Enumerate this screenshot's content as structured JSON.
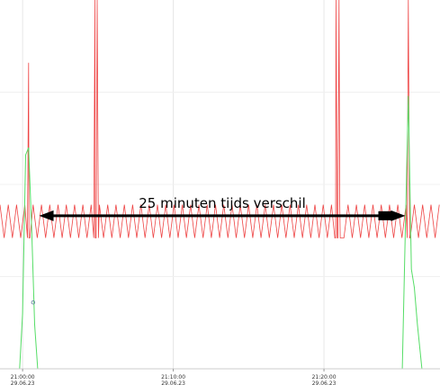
{
  "chart_data": {
    "type": "line",
    "xlabel": "",
    "ylabel": "",
    "x_unit": "minutes",
    "xlim": [
      -1.5,
      27.7
    ],
    "ylim": [
      0,
      100
    ],
    "grid": true,
    "x_ticks": [
      {
        "value": 0,
        "time": "21:00:00",
        "date": "29.06.23"
      },
      {
        "value": 10,
        "time": "21:10:00",
        "date": "29.06.23"
      },
      {
        "value": 20,
        "time": "21:20:00",
        "date": "29.06.23"
      }
    ],
    "series": [
      {
        "color": "#ee4444",
        "baseline_low": 35.5,
        "baseline_high": 44.5,
        "oscillation_period_min": 0.55,
        "peaks": [
          {
            "x": 0.4,
            "y": 83
          },
          {
            "x": 4.8,
            "y": 100
          },
          {
            "x": 4.95,
            "y": 100
          },
          {
            "x": 20.8,
            "y": 100
          },
          {
            "x": 21.0,
            "y": 100
          },
          {
            "x": 25.6,
            "y": 100
          }
        ]
      },
      {
        "color": "#55dd66",
        "baseline": 0,
        "points": [
          [
            -0.2,
            0
          ],
          [
            0.0,
            15
          ],
          [
            0.2,
            58
          ],
          [
            0.4,
            60
          ],
          [
            0.6,
            38
          ],
          [
            0.8,
            12
          ],
          [
            1.0,
            0
          ],
          [
            25.2,
            0
          ],
          [
            25.4,
            38
          ],
          [
            25.6,
            74
          ],
          [
            25.8,
            27
          ],
          [
            26.0,
            22
          ],
          [
            26.2,
            12
          ],
          [
            26.5,
            0
          ]
        ],
        "marker": {
          "x": 0.7,
          "y": 18
        }
      }
    ],
    "annotation": {
      "text": "25 minuten tijds verschil",
      "arrow_from_x": 1.1,
      "arrow_to_x": 25.4,
      "arrow_y": 41.5
    }
  }
}
